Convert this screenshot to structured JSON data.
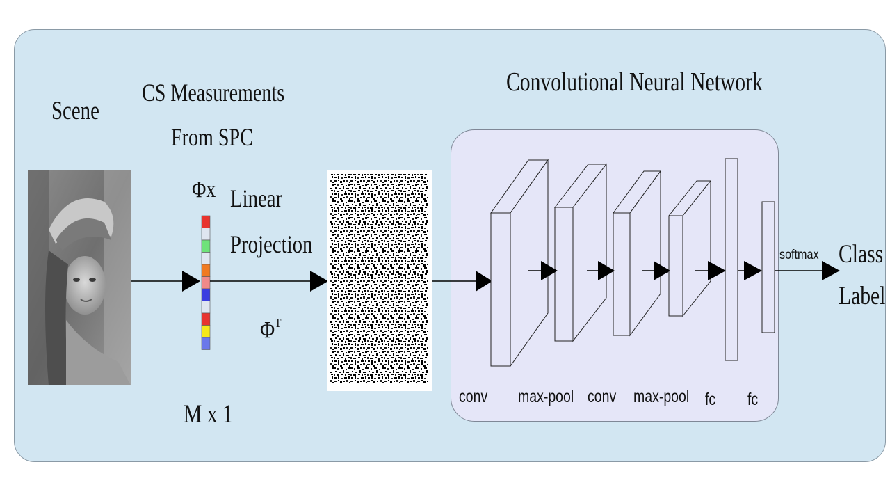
{
  "labels": {
    "scene": "Scene",
    "cs_line1": "CS Measurements",
    "cs_line2": "From SPC",
    "phi_x": "Φx",
    "linear": "Linear",
    "projection": "Projection",
    "phi_t_base": "Φ",
    "phi_t_sup": "T",
    "m_x_1": "M x 1",
    "cnn_title": "Convolutional Neural Network",
    "conv1": "conv",
    "maxpool1": "max-pool",
    "conv2": "conv",
    "maxpool2": "max-pool",
    "fc1": "fc",
    "fc2": "fc",
    "softmax": "softmax",
    "class_line1": "Class",
    "class_line2": "Label"
  },
  "colors": {
    "panel_bg": "#d2e6f2",
    "cnn_bg": "#e5e6f8",
    "measurement_cells": [
      "#e8342f",
      "#dfe6f0",
      "#6fe37a",
      "#dfe6f0",
      "#f07a22",
      "#f08a8a",
      "#3a3de0",
      "#dfe6f0",
      "#e8342f",
      "#f5e81a",
      "#6a78ea"
    ]
  },
  "icons": {
    "scene_image": "grayscale-portrait-photo",
    "measurement_image": "random-noise-reconstruction",
    "arrow": "arrow-right-icon"
  }
}
